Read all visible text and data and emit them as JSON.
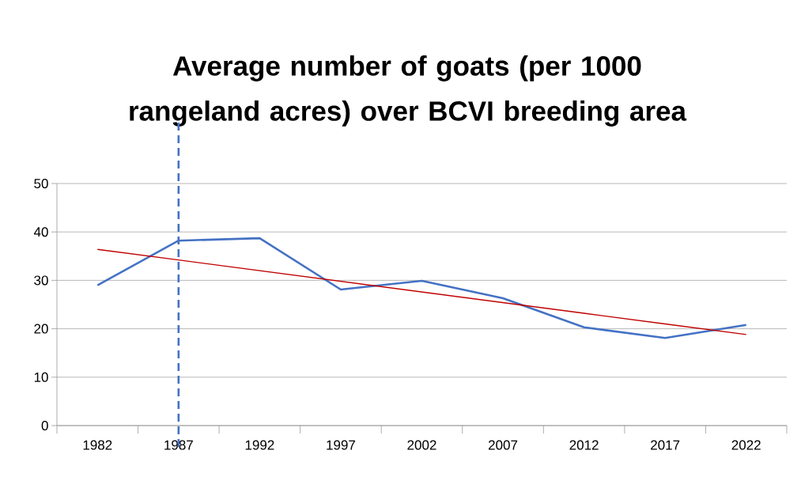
{
  "chart_data": {
    "type": "line",
    "title": "Average number of goats (per 1000 rangeland acres) over BCVI breeding area",
    "categories": [
      "1982",
      "1987",
      "1992",
      "1997",
      "2002",
      "2007",
      "2012",
      "2017",
      "2022"
    ],
    "series": [
      {
        "color": "#4472c4",
        "values": [
          29,
          38.2,
          38.7,
          28.1,
          29.9,
          26.3,
          20.3,
          18.1,
          20.8
        ]
      },
      {
        "type": "line",
        "color": "#c00000",
        "values": [
          36.4,
          34.2,
          32.0,
          29.8,
          27.6,
          25.4,
          23.2,
          21.0,
          18.8
        ]
      }
    ],
    "ylim": [
      0,
      50
    ],
    "yticks": [
      0,
      10,
      20,
      30,
      40,
      50
    ],
    "grid": "y",
    "marker": "none",
    "ref_lines": [
      {
        "axis": "x",
        "value": "1987",
        "color": "#4472c4",
        "line_style": "dashed"
      }
    ]
  }
}
